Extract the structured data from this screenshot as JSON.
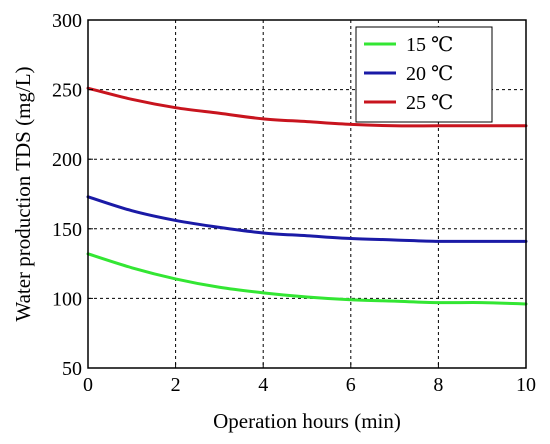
{
  "chart_data": {
    "type": "line",
    "xlabel": "Operation hours (min)",
    "ylabel": "Water production TDS (mg/L)",
    "xlim": [
      0,
      10
    ],
    "ylim": [
      50,
      300
    ],
    "xticks": [
      "0",
      "2",
      "4",
      "6",
      "8",
      "10"
    ],
    "yticks": [
      "50",
      "100",
      "150",
      "200",
      "250",
      "300"
    ],
    "grid": true,
    "legend_position": "top-right",
    "series": [
      {
        "name": "15 ℃",
        "color": "#33e633",
        "x": [
          0,
          1,
          2,
          3,
          4,
          5,
          6,
          7,
          8,
          9,
          10
        ],
        "y": [
          132,
          122,
          114,
          108,
          104,
          101,
          99,
          98,
          97,
          97,
          96
        ]
      },
      {
        "name": "20 ℃",
        "color": "#1a1aa6",
        "x": [
          0,
          1,
          2,
          3,
          4,
          5,
          6,
          7,
          8,
          9,
          10
        ],
        "y": [
          173,
          163,
          156,
          151,
          147,
          145,
          143,
          142,
          141,
          141,
          141
        ]
      },
      {
        "name": "25 ℃",
        "color": "#c8141e",
        "x": [
          0,
          1,
          2,
          3,
          4,
          5,
          6,
          7,
          8,
          9,
          10
        ],
        "y": [
          251,
          243,
          237,
          233,
          229,
          227,
          225,
          224,
          224,
          224,
          224
        ]
      }
    ]
  }
}
